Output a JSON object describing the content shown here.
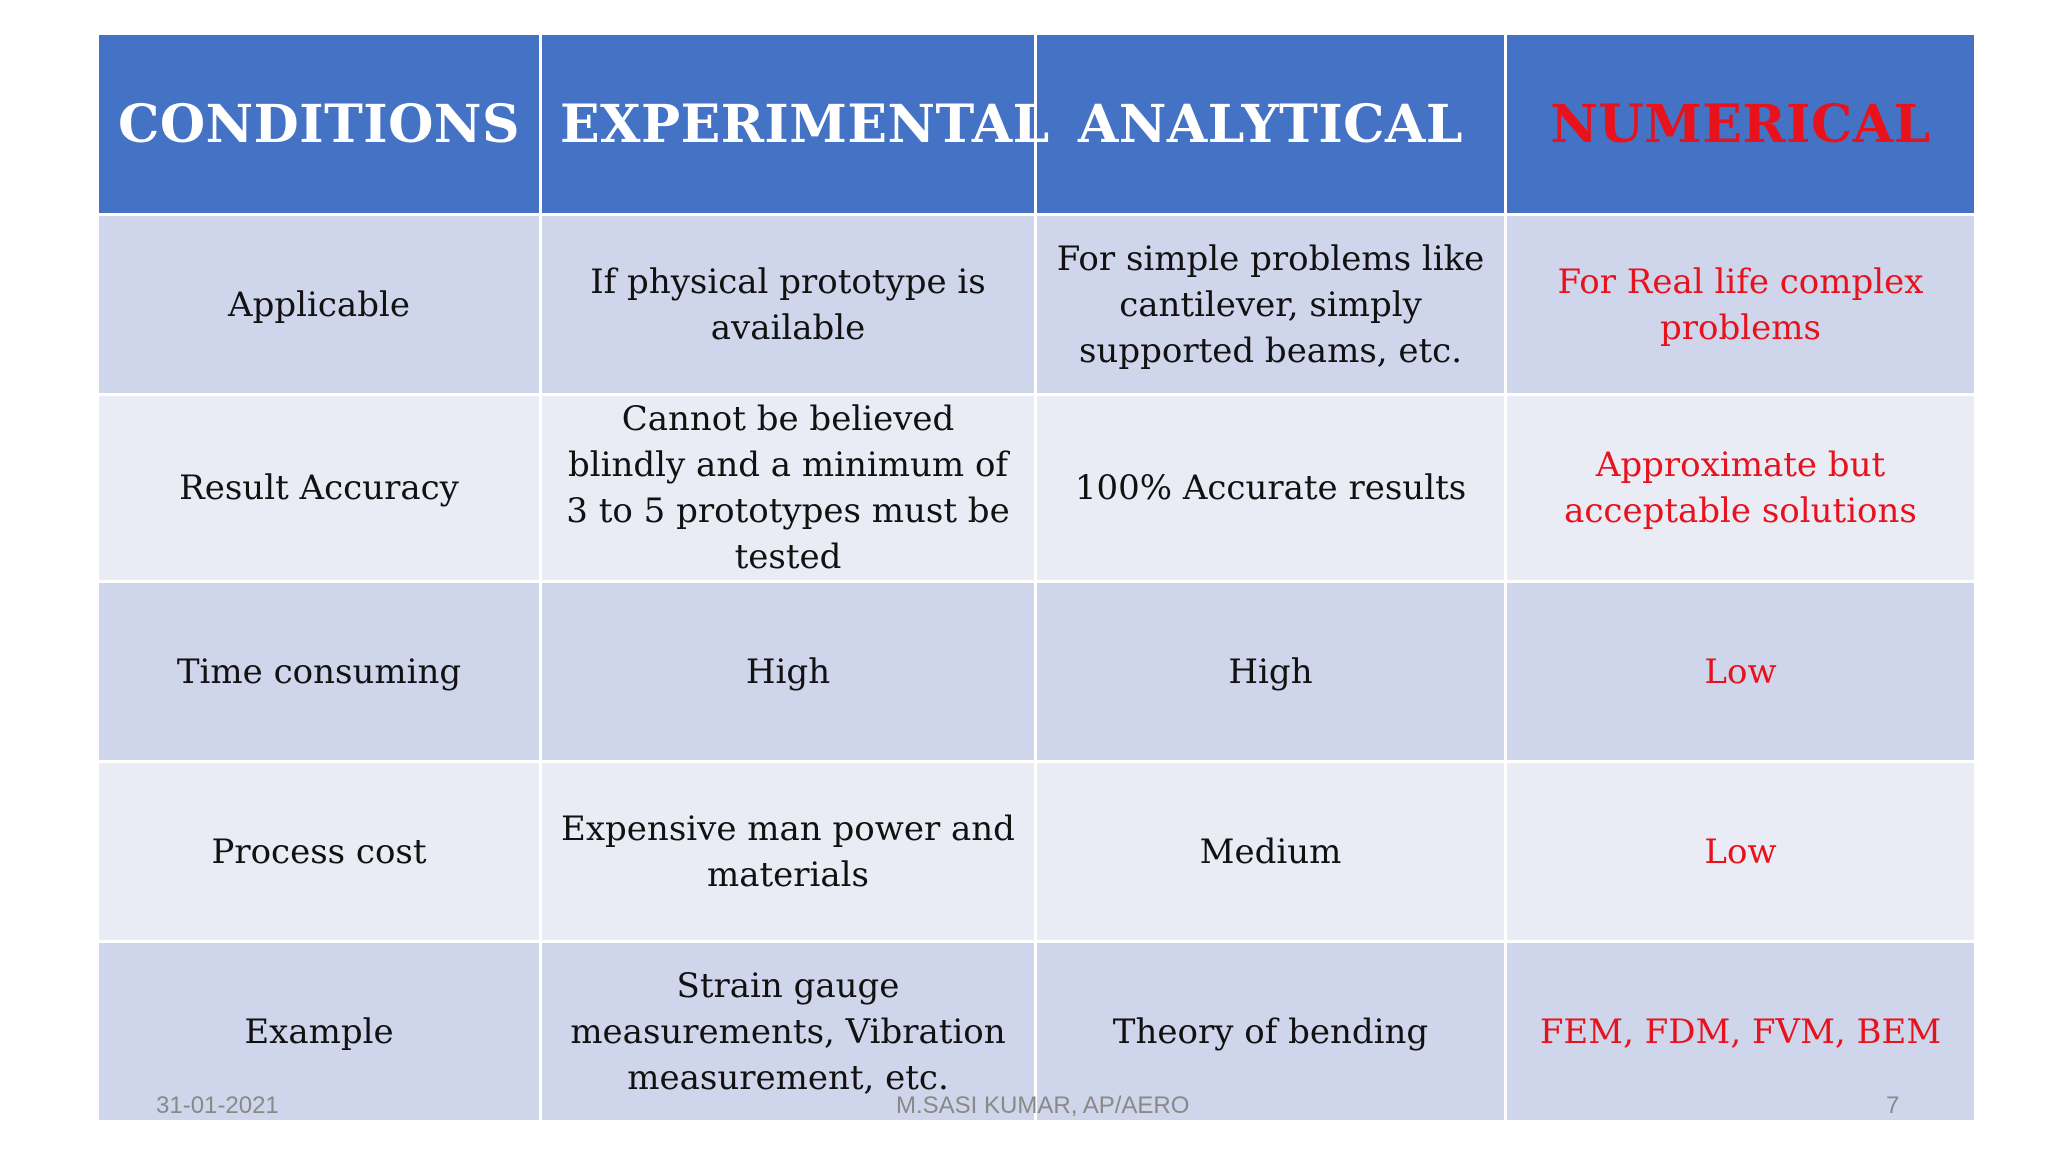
{
  "table": {
    "headers": [
      "CONDITIONS",
      "EXPERIMENTAL",
      "ANALYTICAL",
      "NUMERICAL"
    ],
    "rows": [
      {
        "condition": "Applicable",
        "experimental": "If physical prototype is available",
        "analytical": "For simple problems like cantilever, simply supported beams, etc.",
        "numerical": "For Real life complex problems"
      },
      {
        "condition": "Result Accuracy",
        "experimental": "Cannot be believed blindly and a minimum of 3 to 5 prototypes must be tested",
        "analytical": "100% Accurate results",
        "numerical": "Approximate but acceptable solutions"
      },
      {
        "condition": "Time consuming",
        "experimental": "High",
        "analytical": "High",
        "numerical": "Low"
      },
      {
        "condition": "Process cost",
        "experimental": "Expensive man power and materials",
        "analytical": "Medium",
        "numerical": "Low"
      },
      {
        "condition": "Example",
        "experimental": "Strain gauge measurements, Vibration measurement, etc.",
        "analytical": "Theory of bending",
        "numerical": "FEM, FDM, FVM, BEM"
      }
    ]
  },
  "footer": {
    "date": "31-01-2021",
    "author": "M.SASI KUMAR, AP/AERO",
    "page_number": "7"
  },
  "colors": {
    "header_background": "#4472c4",
    "header_text": "#ffffff",
    "numerical_accent": "#e8121d",
    "row_band_dark": "#cfd5ea",
    "row_band_light": "#e9ebf5",
    "footer_text": "#898989"
  }
}
